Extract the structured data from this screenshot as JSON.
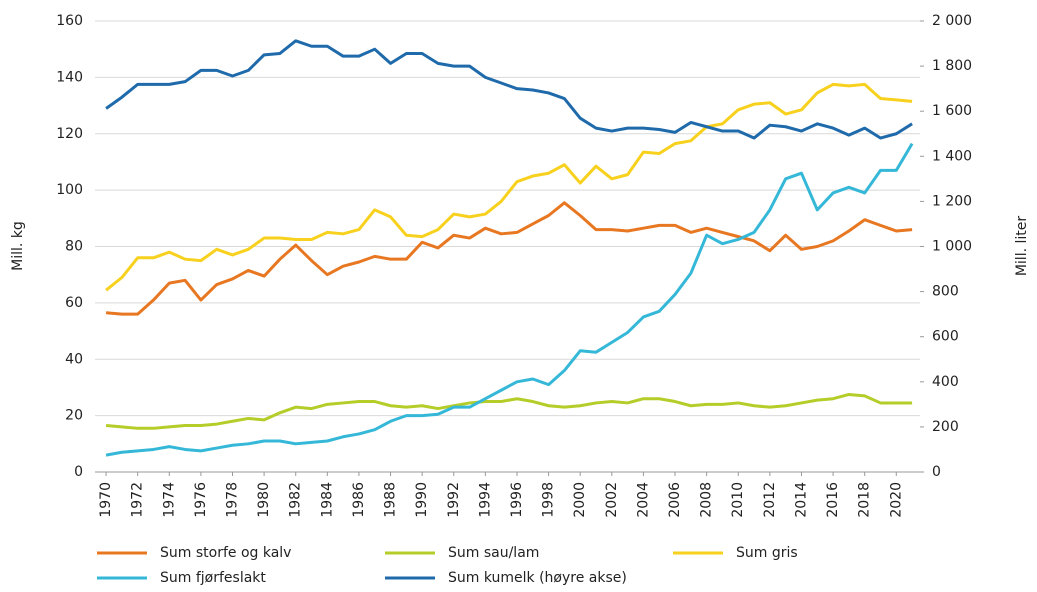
{
  "chart_data": {
    "type": "line",
    "y_label": "Mill. kg",
    "y2_label": "Mill. liter",
    "x": [
      1970,
      1971,
      1972,
      1973,
      1974,
      1975,
      1976,
      1977,
      1978,
      1979,
      1980,
      1981,
      1982,
      1983,
      1984,
      1985,
      1986,
      1987,
      1988,
      1989,
      1990,
      1991,
      1992,
      1993,
      1994,
      1995,
      1996,
      1997,
      1998,
      1999,
      2000,
      2001,
      2002,
      2003,
      2004,
      2005,
      2006,
      2007,
      2008,
      2009,
      2010,
      2011,
      2012,
      2013,
      2014,
      2015,
      2016,
      2017,
      2018,
      2019,
      2020,
      2021
    ],
    "xlim": [
      1969.3,
      2021.5
    ],
    "xticks": [
      1970,
      1972,
      1974,
      1976,
      1978,
      1980,
      1982,
      1984,
      1986,
      1988,
      1990,
      1992,
      1994,
      1996,
      1998,
      2000,
      2002,
      2004,
      2006,
      2008,
      2010,
      2012,
      2014,
      2016,
      2018,
      2020
    ],
    "ylim": [
      0,
      160
    ],
    "yticks": [
      0,
      20,
      40,
      60,
      80,
      100,
      120,
      140,
      160
    ],
    "y2lim": [
      0,
      2000
    ],
    "y2ticks": [
      0,
      200,
      400,
      600,
      800,
      {
        "value": 1000,
        "label": "1 000"
      },
      {
        "value": 1200,
        "label": "1 200"
      },
      {
        "value": 1400,
        "label": "1 400"
      },
      {
        "value": 1600,
        "label": "1 600"
      },
      {
        "value": 1800,
        "label": "1 800"
      },
      {
        "value": 2000,
        "label": "2 000"
      }
    ],
    "grid": true,
    "series": [
      {
        "name": "Sum storfe og kalv",
        "color": "#e87722",
        "values": [
          56.5,
          56,
          56,
          61,
          67,
          68,
          61,
          66.5,
          68.5,
          71.5,
          69.5,
          75.5,
          80.5,
          75,
          70,
          73,
          74.5,
          76.5,
          75.5,
          75.5,
          81.5,
          79.5,
          84,
          83,
          86.5,
          84.5,
          85,
          88,
          91,
          95.5,
          91,
          86,
          86,
          85.5,
          86.5,
          87.5,
          87.5,
          85,
          86.5,
          85,
          83.5,
          82,
          78.5,
          84,
          79,
          80,
          82,
          85.5,
          89.5,
          87.5,
          85.5,
          86
        ]
      },
      {
        "name": "Sum sau/lam",
        "color": "#b5cd28",
        "values": [
          16.5,
          16,
          15.5,
          15.5,
          16,
          16.5,
          16.5,
          17,
          18,
          19,
          18.5,
          21,
          23,
          22.5,
          24,
          24.5,
          25,
          25,
          23.5,
          23,
          23.5,
          22.5,
          23.5,
          24.5,
          25,
          25,
          26,
          25,
          23.5,
          23,
          23.5,
          24.5,
          25,
          24.5,
          26,
          26,
          25,
          23.5,
          24,
          24,
          24.5,
          23.5,
          23,
          23.5,
          24.5,
          25.5,
          26,
          27.5,
          27,
          24.5,
          24.5,
          24.5
        ]
      },
      {
        "name": "Sum gris",
        "color": "#f7d11e",
        "values": [
          64.5,
          69,
          76,
          76,
          78,
          75.5,
          75,
          79,
          77,
          79,
          83,
          83,
          82.5,
          82.5,
          85,
          84.5,
          86,
          93,
          90.5,
          84,
          83.5,
          86,
          91.5,
          90.5,
          91.5,
          96,
          103,
          105,
          106,
          109,
          102.5,
          108.5,
          104,
          105.5,
          113.5,
          113,
          116.5,
          117.5,
          122.5,
          123.5,
          128.5,
          130.5,
          131,
          127,
          128.5,
          134.5,
          137.5,
          137,
          137.5,
          132.5,
          132,
          131.5
        ]
      },
      {
        "name": "Sum fjørfeslakt",
        "color": "#35b8d8",
        "values": [
          6,
          7,
          7.5,
          8,
          9,
          8,
          7.5,
          8.5,
          9.5,
          10,
          11,
          11,
          10,
          10.5,
          11,
          12.5,
          13.5,
          15,
          18,
          20,
          20,
          20.5,
          23,
          23,
          26,
          29,
          32,
          33,
          31,
          36,
          43,
          42.5,
          46,
          49.5,
          55,
          57,
          63,
          70.5,
          84,
          81,
          82.5,
          85,
          93,
          104,
          106,
          93,
          99,
          101,
          99,
          107,
          107,
          116.5
        ]
      },
      {
        "name": "Sum kumelk (høyre akse)",
        "color": "#1f6aab",
        "axis": "y2",
        "values": [
          1612,
          1662,
          1719,
          1719,
          1719,
          1731,
          1781,
          1781,
          1756,
          1781,
          1850,
          1856,
          1912,
          1888,
          1888,
          1844,
          1844,
          1875,
          1812,
          1856,
          1856,
          1812,
          1800,
          1800,
          1750,
          1725,
          1700,
          1694,
          1681,
          1656,
          1569,
          1525,
          1512,
          1525,
          1525,
          1519,
          1506,
          1550,
          1531,
          1512,
          1512,
          1481,
          1538,
          1531,
          1512,
          1544,
          1525,
          1494,
          1525,
          1481,
          1500,
          1544
        ]
      }
    ]
  }
}
